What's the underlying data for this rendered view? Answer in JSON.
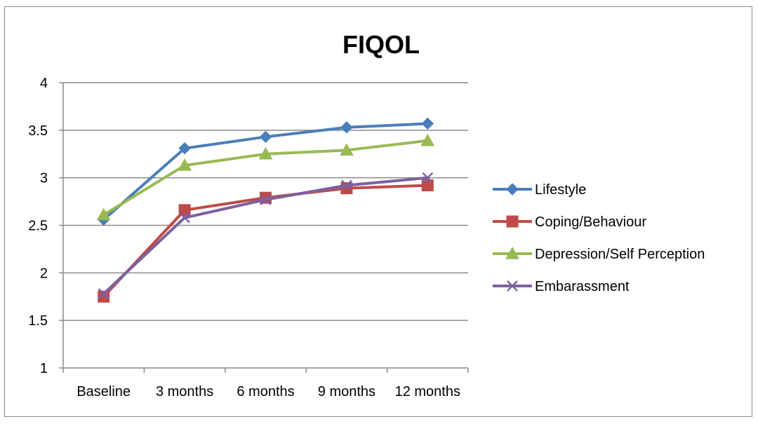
{
  "chart_data": {
    "type": "line",
    "title": "FIQOL",
    "xlabel": "",
    "ylabel": "",
    "categories": [
      "Baseline",
      "3 months",
      "6 months",
      "9 months",
      "12 months"
    ],
    "ylim": [
      1,
      4
    ],
    "yticks": [
      "1",
      "1.5",
      "2",
      "2.5",
      "3",
      "3.5",
      "4"
    ],
    "grid": "horizontal",
    "legend_position": "right",
    "series": [
      {
        "name": "Lifestyle",
        "color": "#4a7ebb",
        "marker": "diamond",
        "values": [
          2.56,
          3.31,
          3.43,
          3.53,
          3.57
        ]
      },
      {
        "name": "Coping/Behaviour",
        "color": "#be4b48",
        "marker": "square",
        "values": [
          1.75,
          2.66,
          2.79,
          2.89,
          2.92
        ]
      },
      {
        "name": "Depression/Self Perception",
        "color": "#98b954",
        "marker": "triangle",
        "values": [
          2.61,
          3.13,
          3.25,
          3.29,
          3.39
        ]
      },
      {
        "name": "Embarassment",
        "color": "#7d60a0",
        "marker": "x",
        "values": [
          1.78,
          2.58,
          2.77,
          2.92,
          3.0
        ]
      }
    ]
  }
}
